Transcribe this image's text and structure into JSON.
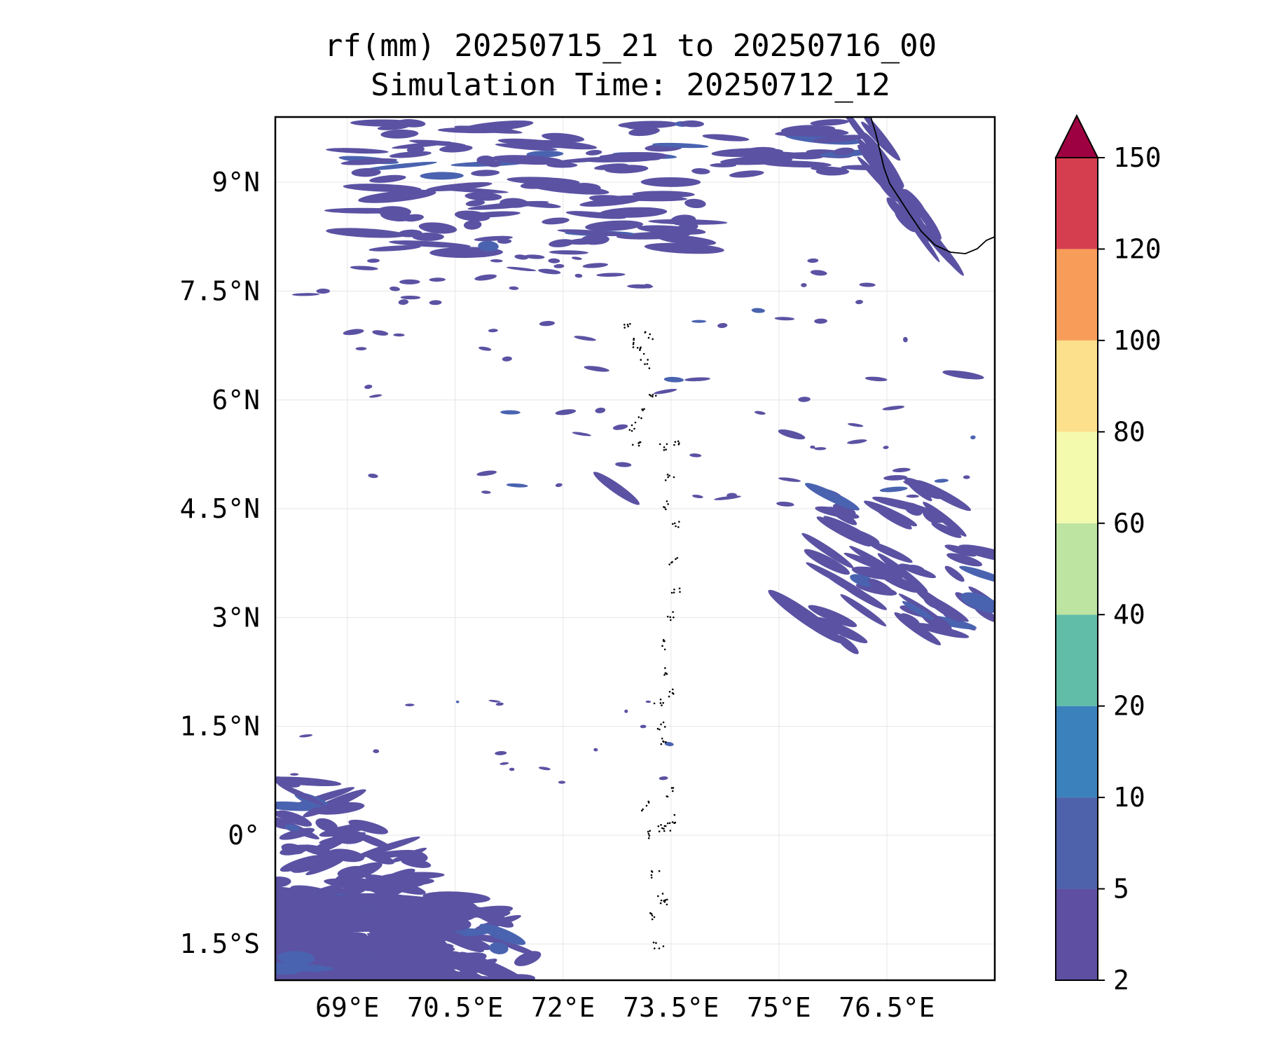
{
  "title_line1": "rf(mm) 20250715_21 to 20250716_00",
  "title_line2": "Simulation Time: 20250712_12",
  "map": {
    "lon_range": [
      68,
      78
    ],
    "lat_range": [
      -2,
      9.9
    ],
    "lat_ticks": [
      {
        "value": 9,
        "label": "9°N"
      },
      {
        "value": 7.5,
        "label": "7.5°N"
      },
      {
        "value": 6,
        "label": "6°N"
      },
      {
        "value": 4.5,
        "label": "4.5°N"
      },
      {
        "value": 3,
        "label": "3°N"
      },
      {
        "value": 1.5,
        "label": "1.5°N"
      },
      {
        "value": 0,
        "label": "0°"
      },
      {
        "value": -1.5,
        "label": "1.5°S"
      }
    ],
    "lon_ticks": [
      {
        "value": 69,
        "label": "69°E"
      },
      {
        "value": 70.5,
        "label": "70.5°E"
      },
      {
        "value": 72,
        "label": "72°E"
      },
      {
        "value": 73.5,
        "label": "73.5°E"
      },
      {
        "value": 75,
        "label": "75°E"
      },
      {
        "value": 76.5,
        "label": "76.5°E"
      }
    ],
    "rain_color": "#5b52a3",
    "rain_dark_color": "#4a63b0",
    "coast_color": "#000000"
  },
  "colorbar": {
    "levels": [
      "2",
      "5",
      "10",
      "20",
      "40",
      "60",
      "80",
      "100",
      "120",
      "150"
    ],
    "colors": [
      "#5e4fa2",
      "#4e62ac",
      "#3b82bd",
      "#62bda8",
      "#bde4a0",
      "#f3faad",
      "#fde08b",
      "#f89d59",
      "#d53e4f"
    ],
    "extend_color": "#9e0142"
  }
}
